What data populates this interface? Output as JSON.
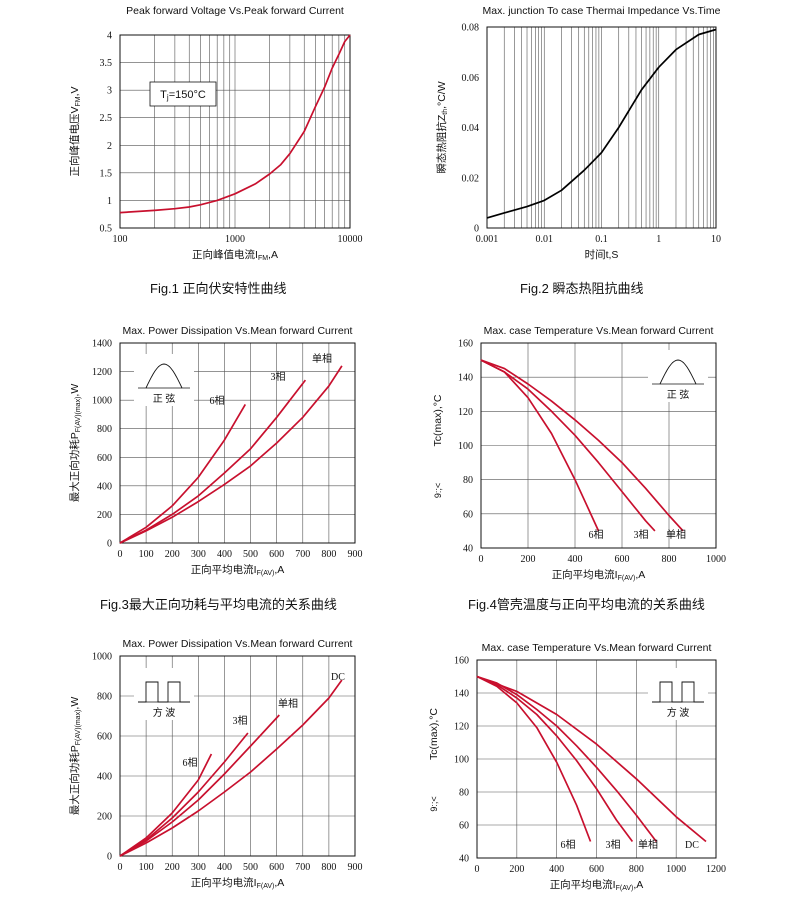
{
  "captions": [
    "Fig.1 正向伏安特性曲线",
    "Fig.2 瞬态热阻抗曲线",
    "Fig.3最大正向功耗与平均电流的关系曲线",
    "Fig.4管壳温度与正向平均电流的关系曲线",
    "",
    ""
  ],
  "chart_data": [
    {
      "type": "line",
      "title": "Peak forward Voltage Vs.Peak forward Current",
      "xlabel": "正向峰值电流I_FM,A",
      "ylabel": "正向峰值电压V_FM,V",
      "xscale": "log",
      "xlim": [
        100,
        10000
      ],
      "ylim": [
        0.5,
        4
      ],
      "xticks": [
        100,
        1000,
        10000
      ],
      "yticks": [
        0.5,
        1,
        1.5,
        2,
        2.5,
        3,
        3.5,
        4
      ],
      "grid": "log-x, linear-y",
      "annotations": [
        "Tj=150°C"
      ],
      "series": [
        {
          "name": "",
          "color": "#c8102e",
          "x": [
            100,
            200,
            300,
            400,
            500,
            700,
            1000,
            1500,
            2000,
            2500,
            3000,
            4000,
            5000,
            6000,
            7000,
            8000,
            9000,
            10000
          ],
          "y": [
            0.78,
            0.82,
            0.85,
            0.88,
            0.92,
            1.0,
            1.12,
            1.3,
            1.48,
            1.65,
            1.85,
            2.25,
            2.7,
            3.05,
            3.4,
            3.65,
            3.88,
            4.0
          ]
        }
      ]
    },
    {
      "type": "line",
      "title": "Max. junction To case Thermai Impedance Vs.Time",
      "xlabel": "时间t,S",
      "ylabel": "瞬态热阻抗Z_th,°C/W",
      "xscale": "log",
      "xlim": [
        0.001,
        10
      ],
      "ylim": [
        0,
        0.08
      ],
      "xticks": [
        0.001,
        0.01,
        0.1,
        1,
        10
      ],
      "yticks": [
        0,
        0.02,
        0.04,
        0.06,
        0.08
      ],
      "grid": "log-x",
      "series": [
        {
          "name": "",
          "color": "#000000",
          "x": [
            0.001,
            0.002,
            0.005,
            0.01,
            0.02,
            0.05,
            0.1,
            0.2,
            0.5,
            1,
            2,
            5,
            10
          ],
          "y": [
            0.004,
            0.006,
            0.0085,
            0.011,
            0.015,
            0.023,
            0.03,
            0.04,
            0.055,
            0.064,
            0.071,
            0.077,
            0.079
          ]
        }
      ]
    },
    {
      "type": "line",
      "title": "Max. Power Dissipation Vs.Mean forward Current",
      "xlabel": "正向平均电流I_F(AV),A",
      "ylabel": "最大正向功耗P_F(AV)(max),W",
      "xlim": [
        0,
        900
      ],
      "ylim": [
        0,
        1400
      ],
      "xticks": [
        0,
        100,
        200,
        300,
        400,
        500,
        600,
        700,
        800,
        900
      ],
      "yticks": [
        0,
        200,
        400,
        600,
        800,
        1000,
        1200,
        1400
      ],
      "grid": "linear",
      "inset": {
        "shape": "sine",
        "label": "正  弦"
      },
      "series": [
        {
          "name": "6相",
          "color": "#c8102e",
          "x": [
            0,
            100,
            200,
            300,
            400,
            480
          ],
          "y": [
            0,
            110,
            260,
            460,
            720,
            970
          ]
        },
        {
          "name": "3相",
          "color": "#c8102e",
          "x": [
            0,
            100,
            200,
            300,
            400,
            500,
            600,
            710
          ],
          "y": [
            0,
            90,
            200,
            330,
            490,
            660,
            880,
            1140
          ]
        },
        {
          "name": "单相",
          "color": "#c8102e",
          "x": [
            0,
            100,
            200,
            300,
            400,
            500,
            600,
            700,
            800,
            850
          ],
          "y": [
            0,
            85,
            180,
            290,
            410,
            540,
            700,
            880,
            1100,
            1240
          ]
        }
      ]
    },
    {
      "type": "line",
      "title": "Max. case Temperature Vs.Mean forward Current",
      "xlabel": "正向平均电流I_F(AV),A",
      "ylabel": "Tc(max),°C",
      "y_side_text": "9:;<",
      "xlim": [
        0,
        1000
      ],
      "ylim": [
        40,
        160
      ],
      "xticks": [
        0,
        200,
        400,
        600,
        800,
        1000
      ],
      "yticks": [
        40,
        60,
        80,
        100,
        120,
        140,
        160
      ],
      "grid": "linear",
      "inset": {
        "shape": "sine",
        "label": "正  弦"
      },
      "series": [
        {
          "name": "6相",
          "color": "#c8102e",
          "x": [
            0,
            100,
            200,
            300,
            400,
            450,
            500
          ],
          "y": [
            150,
            143,
            128,
            107,
            80,
            65,
            50
          ]
        },
        {
          "name": "3相",
          "color": "#c8102e",
          "x": [
            0,
            100,
            200,
            300,
            400,
            500,
            600,
            700,
            740
          ],
          "y": [
            150,
            143,
            133,
            120,
            106,
            90,
            73,
            56,
            50
          ]
        },
        {
          "name": "单相",
          "color": "#c8102e",
          "x": [
            0,
            100,
            200,
            300,
            400,
            500,
            600,
            700,
            800,
            860
          ],
          "y": [
            150,
            145,
            136,
            126,
            115,
            103,
            90,
            75,
            59,
            50
          ]
        }
      ]
    },
    {
      "type": "line",
      "title": "Max. Power Dissipation Vs.Mean forward Current",
      "xlabel": "正向平均电流I_F(AV),A",
      "ylabel": "最大正向功耗P_F(AV)(max),W",
      "xlim": [
        0,
        900
      ],
      "ylim": [
        0,
        1000
      ],
      "xticks": [
        0,
        100,
        200,
        300,
        400,
        500,
        600,
        700,
        800,
        900
      ],
      "yticks": [
        0,
        200,
        400,
        600,
        800,
        1000
      ],
      "grid": "linear",
      "inset": {
        "shape": "square",
        "label": "方  波"
      },
      "series": [
        {
          "name": "6相",
          "color": "#c8102e",
          "x": [
            0,
            100,
            200,
            300,
            350
          ],
          "y": [
            0,
            90,
            215,
            380,
            510
          ]
        },
        {
          "name": "3相",
          "color": "#c8102e",
          "x": [
            0,
            100,
            200,
            300,
            400,
            490
          ],
          "y": [
            0,
            80,
            190,
            320,
            470,
            615
          ]
        },
        {
          "name": "单相",
          "color": "#c8102e",
          "x": [
            0,
            100,
            200,
            300,
            400,
            500,
            610
          ],
          "y": [
            0,
            75,
            170,
            280,
            410,
            550,
            705
          ]
        },
        {
          "name": "DC",
          "color": "#c8102e",
          "x": [
            0,
            100,
            200,
            300,
            400,
            500,
            600,
            700,
            800,
            850
          ],
          "y": [
            0,
            65,
            140,
            225,
            320,
            420,
            535,
            655,
            790,
            880
          ]
        }
      ]
    },
    {
      "type": "line",
      "title": "Max. case Temperature Vs.Mean forward Current",
      "xlabel": "正向平均电流I_F(AV),A",
      "ylabel": "Tc(max),°C",
      "y_side_text": "9:;<",
      "xlim": [
        0,
        1200
      ],
      "ylim": [
        40,
        160
      ],
      "xticks": [
        0,
        200,
        400,
        600,
        800,
        1000,
        1200
      ],
      "yticks": [
        40,
        60,
        80,
        100,
        120,
        140,
        160
      ],
      "grid": "linear",
      "inset": {
        "shape": "square",
        "label": "方  波"
      },
      "series": [
        {
          "name": "6相",
          "color": "#c8102e",
          "x": [
            0,
            100,
            200,
            300,
            400,
            500,
            570
          ],
          "y": [
            150,
            144,
            134,
            119,
            98,
            72,
            50
          ]
        },
        {
          "name": "3相",
          "color": "#c8102e",
          "x": [
            0,
            100,
            200,
            300,
            400,
            500,
            600,
            700,
            780
          ],
          "y": [
            150,
            145,
            137,
            127,
            114,
            99,
            82,
            63,
            50
          ]
        },
        {
          "name": "单相",
          "color": "#c8102e",
          "x": [
            0,
            100,
            200,
            300,
            400,
            500,
            600,
            700,
            800,
            900
          ],
          "y": [
            150,
            146,
            139,
            130,
            120,
            108,
            95,
            81,
            66,
            50
          ]
        },
        {
          "name": "DC",
          "color": "#c8102e",
          "x": [
            0,
            200,
            400,
            600,
            800,
            1000,
            1150
          ],
          "y": [
            150,
            141,
            127,
            109,
            88,
            65,
            50
          ]
        }
      ]
    }
  ]
}
